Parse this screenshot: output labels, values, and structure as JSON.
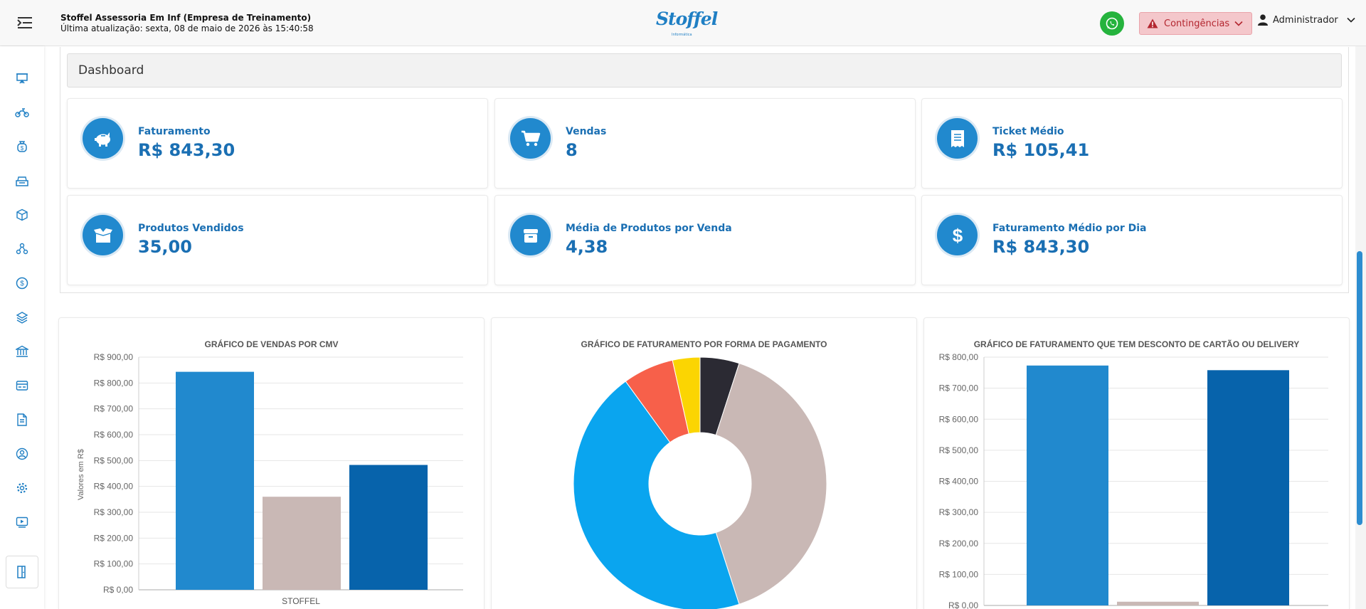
{
  "header": {
    "company_name": "Stoffel Assessoria Em Inf (Empresa de Treinamento)",
    "last_update": "Última atualização: sexta, 08 de maio de 2026 às 15:40:58",
    "logo_text": "Stoffel",
    "logo_sub": "Informática",
    "contingencias_label": "Contingências",
    "user_label": "Administrador",
    "colors": {
      "whatsapp": "#25b33d",
      "contingencias_bg": "#f4c7cb",
      "accent": "#2189ce"
    }
  },
  "sidebar": {
    "items": [
      {
        "icon": "presentation-icon"
      },
      {
        "icon": "motorcycle-icon"
      },
      {
        "icon": "money-bag-icon"
      },
      {
        "icon": "cash-register-icon"
      },
      {
        "icon": "box-icon"
      },
      {
        "icon": "network-icon"
      },
      {
        "icon": "dollar-circle-icon"
      },
      {
        "icon": "layers-icon"
      },
      {
        "icon": "bank-icon"
      },
      {
        "icon": "card-list-icon"
      },
      {
        "icon": "document-icon"
      },
      {
        "icon": "user-settings-icon"
      },
      {
        "icon": "gear-icon"
      },
      {
        "icon": "video-icon"
      }
    ],
    "bottom_icon": "exit-door-icon"
  },
  "dashboard": {
    "title": "Dashboard",
    "kpis": [
      {
        "label": "Faturamento",
        "value": "R$ 843,30",
        "icon": "piggy-bank-icon"
      },
      {
        "label": "Vendas",
        "value": "8",
        "icon": "cart-icon"
      },
      {
        "label": "Ticket Médio",
        "value": "R$ 105,41",
        "icon": "receipt-icon"
      },
      {
        "label": "Produtos Vendidos",
        "value": "35,00",
        "icon": "open-box-icon"
      },
      {
        "label": "Média de Produtos por Venda",
        "value": "4,38",
        "icon": "gift-box-icon"
      },
      {
        "label": "Faturamento Médio por Dia",
        "value": "R$ 843,30",
        "icon": "dollar-icon"
      }
    ]
  },
  "charts": {
    "cmv": {
      "title": "GRÁFICO DE VENDAS POR CMV",
      "ylabel": "Valores em R$",
      "y_ticks": [
        "R$ 0,00",
        "R$ 100,00",
        "R$ 200,00",
        "R$ 300,00",
        "R$ 400,00",
        "R$ 500,00",
        "R$ 600,00",
        "R$ 700,00",
        "R$ 800,00",
        "R$ 900,00"
      ],
      "x_label": "STOFFEL"
    },
    "pagamento": {
      "title": "GRÁFICO DE FATURAMENTO POR FORMA DE PAGAMENTO"
    },
    "desconto": {
      "title": "GRÁFICO DE FATURAMENTO QUE TEM DESCONTO DE CARTÃO OU DELIVERY",
      "y_ticks": [
        "R$ 0,00",
        "R$ 100,00",
        "R$ 200,00",
        "R$ 300,00",
        "R$ 400,00",
        "R$ 500,00",
        "R$ 600,00",
        "R$ 700,00",
        "R$ 800,00"
      ]
    }
  },
  "chart_data": [
    {
      "type": "bar",
      "title": "GRÁFICO DE VENDAS POR CMV",
      "ylabel": "Valores em R$",
      "categories": [
        "STOFFEL"
      ],
      "series": [
        {
          "values": [
            843.3
          ],
          "color": "#2189ce"
        },
        {
          "values": [
            360
          ],
          "color": "#c9b8b5"
        },
        {
          "values": [
            483
          ],
          "color": "#0763ab"
        }
      ],
      "ylim": [
        0,
        900
      ],
      "grid": true
    },
    {
      "type": "pie",
      "title": "GRÁFICO DE FATURAMENTO POR FORMA DE PAGAMENTO",
      "donut": true,
      "slices": [
        {
          "value": 5.0,
          "color": "#2b2a33"
        },
        {
          "value": 40.0,
          "color": "#c9b8b5"
        },
        {
          "value": 45.0,
          "color": "#0aa5ef"
        },
        {
          "value": 6.5,
          "color": "#f7604a"
        },
        {
          "value": 3.5,
          "color": "#fbd502"
        }
      ]
    },
    {
      "type": "bar",
      "title": "GRÁFICO DE FATURAMENTO QUE TEM DESCONTO DE CARTÃO OU DELIVERY",
      "categories": [
        ""
      ],
      "series": [
        {
          "values": [
            773
          ],
          "color": "#2189ce"
        },
        {
          "values": [
            12
          ],
          "color": "#c9b8b5"
        },
        {
          "values": [
            758
          ],
          "color": "#0763ab"
        }
      ],
      "ylim": [
        0,
        800
      ],
      "grid": true
    }
  ]
}
